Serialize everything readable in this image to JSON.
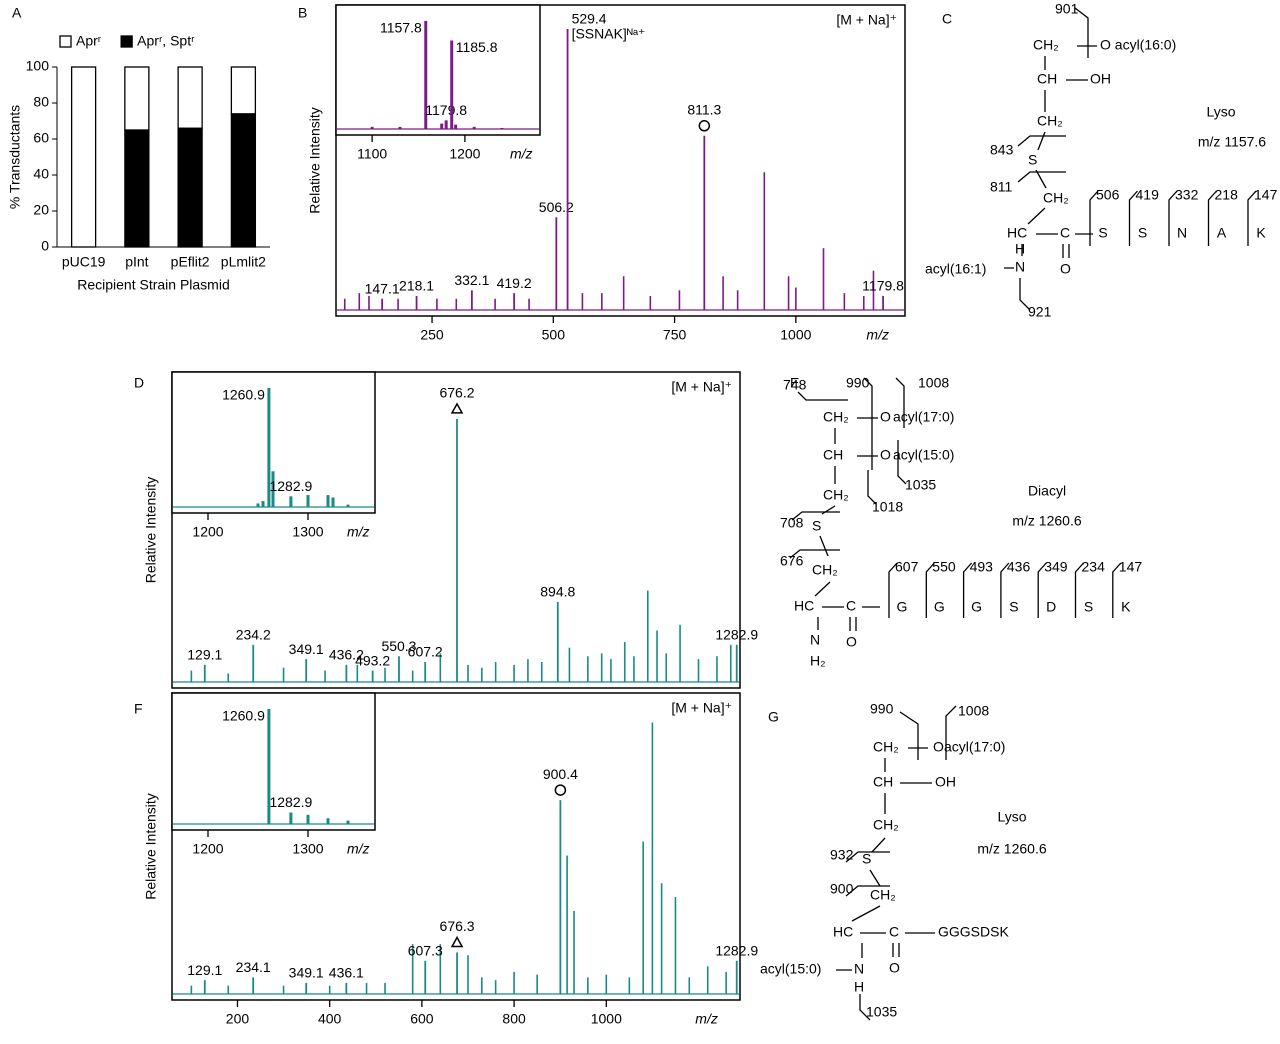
{
  "chart_data": [
    {
      "panel": "A",
      "type": "bar",
      "stacked": true,
      "categories": [
        "pUC19",
        "pInt",
        "pEflit2",
        "pLmlit2"
      ],
      "series": [
        {
          "name": "Aprʳ",
          "color": "#ffffff",
          "values": [
            100,
            35,
            34,
            26
          ]
        },
        {
          "name": "Aprʳ, Sptʳ",
          "color": "#000000",
          "values": [
            0,
            65,
            66,
            74
          ]
        }
      ],
      "ylim": [
        0,
        100
      ],
      "yticks": [
        0,
        20,
        40,
        60,
        80,
        100
      ],
      "ylabel": "% Transductants",
      "xlabel": "Recipient Strain Plasmid"
    },
    {
      "panel": "B",
      "type": "spectrum",
      "color": "#7d1a87",
      "ylabel": "Relative Intensity",
      "xlabel": "m/z",
      "annotation": "[M + Na]⁺",
      "xlim": [
        52,
        1225
      ],
      "xticks": [
        250,
        500,
        750,
        1000
      ],
      "ylim": [
        0,
        100
      ],
      "peaks": {
        "x": [
          147.1,
          218.1,
          332.1,
          419.2,
          506.2,
          529.4,
          811.3,
          1179.8
        ],
        "values": [
          4,
          5,
          7,
          6,
          33,
          100,
          62,
          5
        ]
      },
      "other_peaks": {
        "x": [
          70,
          100,
          120,
          180,
          260,
          300,
          380,
          450,
          560,
          600,
          645,
          700,
          760,
          850,
          880,
          935,
          985,
          1000,
          1057,
          1100,
          1140,
          1160
        ],
        "values": [
          4,
          6,
          5,
          4,
          4,
          4,
          4,
          4,
          6,
          6,
          12,
          5,
          7,
          12,
          7,
          49,
          12,
          8,
          22,
          6,
          5,
          14
        ]
      },
      "peak_notes": [
        {
          "at": 529.4,
          "text": "[SSNAK]ᴺᵃ⁺"
        }
      ],
      "markers": [
        {
          "at": 811.3,
          "shape": "circle"
        }
      ],
      "inset": {
        "xlim": [
          1061,
          1281
        ],
        "xticks": [
          1100,
          1200
        ],
        "xlabel": "m/z",
        "ylim": [
          0,
          100
        ],
        "peaks": {
          "x": [
            1157.8,
            1179.8,
            1185.8
          ],
          "values": [
            100,
            8,
            82
          ]
        },
        "other_peaks": {
          "x": [
            1100,
            1130,
            1175,
            1190,
            1210,
            1240
          ],
          "values": [
            2,
            2,
            5,
            4,
            2,
            1
          ]
        }
      }
    },
    {
      "panel": "D",
      "type": "spectrum",
      "color": "#1a8a87",
      "ylabel": "Relative Intensity",
      "annotation": "[M + Na]⁺",
      "xlim": [
        58,
        1290
      ],
      "ylim": [
        0,
        100
      ],
      "peaks": {
        "x": [
          129.1,
          234.2,
          349.1,
          436.2,
          493.2,
          550.3,
          607.2,
          676.2,
          894.8,
          1282.9
        ],
        "values": [
          6,
          13,
          8,
          6,
          4,
          9,
          7,
          92,
          28,
          13
        ]
      },
      "other_peaks": {
        "x": [
          100,
          180,
          300,
          390,
          460,
          520,
          580,
          640,
          700,
          730,
          760,
          800,
          830,
          860,
          920,
          960,
          990,
          1010,
          1040,
          1060,
          1090,
          1110,
          1130,
          1160,
          1200,
          1240,
          1270
        ],
        "values": [
          4,
          3,
          5,
          4,
          6,
          5,
          4,
          10,
          6,
          5,
          7,
          6,
          8,
          7,
          12,
          9,
          10,
          8,
          14,
          9,
          32,
          18,
          10,
          20,
          8,
          9,
          13
        ]
      },
      "markers": [
        {
          "at": 676.2,
          "shape": "triangle"
        }
      ],
      "inset": {
        "xlim": [
          1164,
          1367
        ],
        "xticks": [
          1200,
          1300
        ],
        "xlabel": "m/z",
        "ylim": [
          0,
          100
        ],
        "peaks": {
          "x": [
            1260.9,
            1282.9
          ],
          "values": [
            100,
            9
          ]
        },
        "other_peaks": {
          "x": [
            1250,
            1255,
            1265,
            1300,
            1320,
            1325,
            1340
          ],
          "values": [
            3,
            5,
            30,
            10,
            10,
            8,
            2
          ]
        }
      }
    },
    {
      "panel": "F",
      "type": "spectrum",
      "color": "#1a8a87",
      "ylabel": "Relative Intensity",
      "xlabel": "m/z",
      "annotation": "[M + Na]⁺",
      "xlim": [
        58,
        1290
      ],
      "xticks": [
        200,
        400,
        600,
        800,
        1000
      ],
      "ylim": [
        0,
        100
      ],
      "peaks": {
        "x": [
          129.1,
          234.1,
          349.1,
          436.1,
          607.3,
          676.3,
          900.4,
          1282.9
        ],
        "values": [
          5,
          6,
          4,
          4,
          12,
          15,
          70,
          12
        ]
      },
      "other_peaks": {
        "x": [
          100,
          180,
          300,
          400,
          480,
          520,
          580,
          640,
          700,
          730,
          760,
          800,
          850,
          915,
          930,
          960,
          1000,
          1050,
          1080,
          1100,
          1120,
          1150,
          1180,
          1220,
          1260
        ],
        "values": [
          3,
          3,
          3,
          3,
          4,
          4,
          18,
          18,
          14,
          6,
          5,
          8,
          7,
          50,
          30,
          6,
          7,
          6,
          55,
          98,
          40,
          35,
          6,
          10,
          8
        ]
      },
      "markers": [
        {
          "at": 900.4,
          "shape": "circle"
        },
        {
          "at": 676.3,
          "shape": "triangle"
        }
      ],
      "inset": {
        "xlim": [
          1164,
          1367
        ],
        "xticks": [
          1200,
          1300
        ],
        "xlabel": "m/z",
        "ylim": [
          0,
          100
        ],
        "peaks": {
          "x": [
            1260.9,
            1282.9
          ],
          "values": [
            100,
            10
          ]
        },
        "other_peaks": {
          "x": [
            1300,
            1320,
            1340
          ],
          "values": [
            8,
            5,
            3
          ]
        }
      }
    }
  ],
  "structures": [
    {
      "panel": "C",
      "labels": [
        "901",
        "CH₂",
        "O acyl(16:0)",
        "CH",
        "OH",
        "CH₂",
        "843",
        "S",
        "811",
        "CH₂",
        "HC",
        "C",
        "O",
        "acyl(16:1)",
        "N",
        "H",
        "921",
        "Lyso",
        "m/z 1157.6"
      ],
      "residues": [
        "S",
        "S",
        "N",
        "A",
        "K"
      ],
      "fragments": [
        506,
        419,
        332,
        218,
        147
      ]
    },
    {
      "panel": "E",
      "labels": [
        "748",
        "990",
        "1008",
        "CH₂",
        "O",
        "acyl(17:0)",
        "CH",
        "O",
        "acyl(15:0)",
        "1018",
        "1035",
        "CH₂",
        "708",
        "S",
        "676",
        "CH₂",
        "HC",
        "C",
        "O",
        "N",
        "H₂",
        "Diacyl",
        "m/z 1260.6"
      ],
      "residues": [
        "G",
        "G",
        "G",
        "S",
        "D",
        "S",
        "K"
      ],
      "fragments": [
        607,
        550,
        493,
        436,
        349,
        234,
        147
      ]
    },
    {
      "panel": "G",
      "labels": [
        "990",
        "1008",
        "CH₂",
        "O",
        "acyl(17:0)",
        "CH",
        "OH",
        "CH₂",
        "932",
        "S",
        "900",
        "CH₂",
        "HC",
        "C",
        "O",
        "acyl(15:0)",
        "N",
        "H",
        "1035",
        "Lyso",
        "m/z 1260.6",
        "GGGSDSK"
      ]
    }
  ]
}
